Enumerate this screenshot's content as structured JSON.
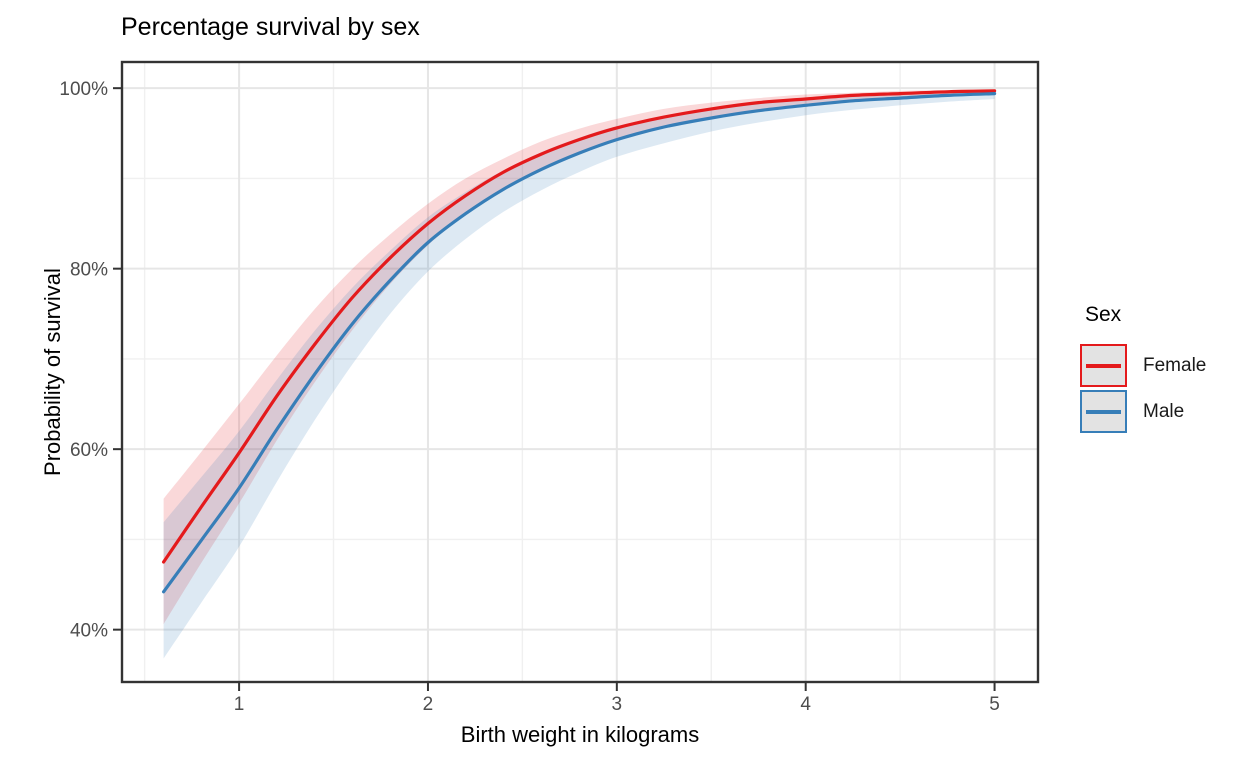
{
  "chart_data": {
    "type": "line",
    "title": "Percentage survival by sex",
    "xlabel": "Birth weight in kilograms",
    "ylabel": "Probability of survival",
    "xlim": [
      0.38,
      5.23
    ],
    "ylim": [
      34.2,
      102.9
    ],
    "x_ticks": [
      1,
      2,
      3,
      4,
      5
    ],
    "x_tick_labels": [
      "1",
      "2",
      "3",
      "4",
      "5"
    ],
    "x_minor_ticks": [
      0.5,
      1.5,
      2.5,
      3.5,
      4.5
    ],
    "y_ticks": [
      40,
      60,
      80,
      100
    ],
    "y_tick_labels": [
      "40%",
      "60%",
      "80%",
      "100%"
    ],
    "y_minor_ticks": [
      50,
      70,
      90
    ],
    "grid": "major-and-minor",
    "legend": {
      "title": "Sex",
      "position": "right",
      "key_fill": "#E3E3E3"
    },
    "x": [
      0.6,
      0.8,
      1.0,
      1.2,
      1.4,
      1.6,
      1.8,
      2.0,
      2.2,
      2.4,
      2.6,
      2.8,
      3.0,
      3.25,
      3.5,
      3.75,
      4.0,
      4.25,
      4.5,
      4.75,
      5.0
    ],
    "series": [
      {
        "name": "Female",
        "color": "#E41A1C",
        "values": [
          47.5,
          53.6,
          59.6,
          65.9,
          71.6,
          76.8,
          81.2,
          85.0,
          88.1,
          90.7,
          92.7,
          94.3,
          95.6,
          96.8,
          97.7,
          98.4,
          98.8,
          99.2,
          99.4,
          99.6,
          99.7
        ],
        "ci_upper": [
          54.5,
          59.7,
          65.0,
          70.4,
          75.5,
          80.0,
          83.8,
          87.2,
          90.0,
          92.2,
          94.1,
          95.5,
          96.6,
          97.7,
          98.4,
          98.9,
          99.3,
          99.5,
          99.7,
          99.8,
          99.85
        ],
        "ci_lower": [
          40.6,
          47.4,
          54.0,
          61.0,
          67.4,
          73.2,
          78.3,
          82.6,
          86.0,
          88.8,
          91.1,
          92.8,
          94.3,
          95.7,
          96.8,
          97.6,
          98.2,
          98.6,
          99.0,
          99.2,
          99.4
        ]
      },
      {
        "name": "Male",
        "color": "#377EB8",
        "values": [
          44.2,
          49.9,
          55.7,
          62.2,
          68.3,
          73.9,
          78.7,
          82.9,
          86.1,
          88.8,
          91.0,
          92.8,
          94.3,
          95.7,
          96.7,
          97.5,
          98.1,
          98.6,
          98.9,
          99.2,
          99.4
        ],
        "ci_upper": [
          51.9,
          56.9,
          62.0,
          67.7,
          73.1,
          77.9,
          82.0,
          85.7,
          88.5,
          90.9,
          92.9,
          94.5,
          95.8,
          96.9,
          97.8,
          98.4,
          98.8,
          99.2,
          99.4,
          99.6,
          99.7
        ],
        "ci_lower": [
          36.8,
          43.0,
          49.2,
          56.4,
          63.2,
          69.4,
          75.0,
          79.7,
          83.3,
          86.3,
          88.7,
          90.7,
          92.4,
          93.9,
          95.2,
          96.2,
          97.0,
          97.6,
          98.1,
          98.5,
          98.8
        ]
      }
    ],
    "ribbon_opacity": 0.17
  },
  "styles": {
    "tick_label_color": "#4d4d4d",
    "grid_major_color": "#e6e6e6",
    "grid_minor_color": "#f0f0f0",
    "panel_border_color": "#333333",
    "tick_mark_color": "#333333"
  }
}
